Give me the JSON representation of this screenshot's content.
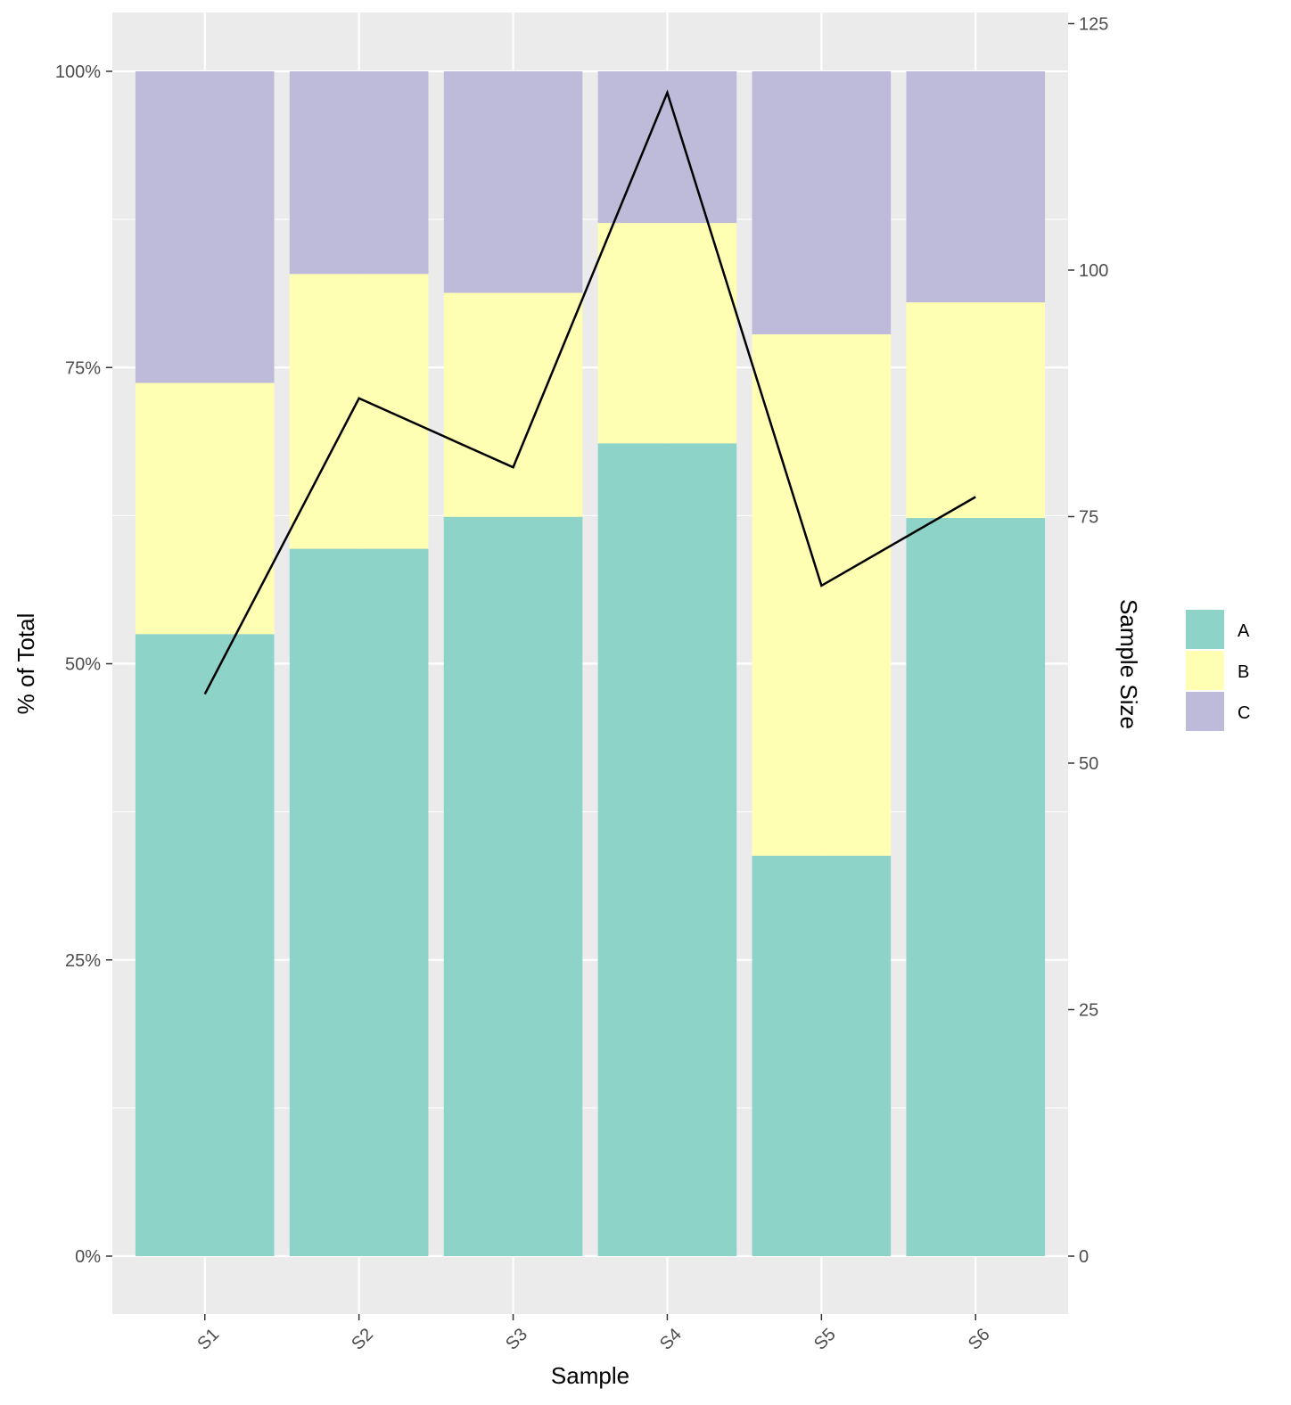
{
  "chart_data": {
    "type": "bar",
    "stacked": true,
    "categories": [
      "S1",
      "S2",
      "S3",
      "S4",
      "S5",
      "S6"
    ],
    "xlabel": "Sample",
    "ylabel": "% of Total",
    "y2label": "Sample Size",
    "ylim": [
      0,
      1
    ],
    "y_ticks": [
      "0%",
      "25%",
      "50%",
      "75%",
      "100%"
    ],
    "y2lim": [
      0,
      125
    ],
    "y2_ticks": [
      "0",
      "25",
      "50",
      "75",
      "100",
      "125"
    ],
    "series": [
      {
        "name": "A",
        "color": "#8DD3C7",
        "values": [
          0.525,
          0.597,
          0.624,
          0.686,
          0.338,
          0.623
        ]
      },
      {
        "name": "B",
        "color": "#FFFFB3",
        "values": [
          0.212,
          0.232,
          0.189,
          0.186,
          0.44,
          0.182
        ]
      },
      {
        "name": "C",
        "color": "#BEBADA",
        "values": [
          0.263,
          0.171,
          0.187,
          0.128,
          0.222,
          0.195
        ]
      }
    ],
    "line": {
      "axis": "secondary",
      "color": "#000000",
      "values": [
        57,
        87,
        80,
        118,
        68,
        77
      ]
    },
    "grid": true,
    "panel_background": "#EBEBEB",
    "legend": {
      "position": "right"
    }
  }
}
